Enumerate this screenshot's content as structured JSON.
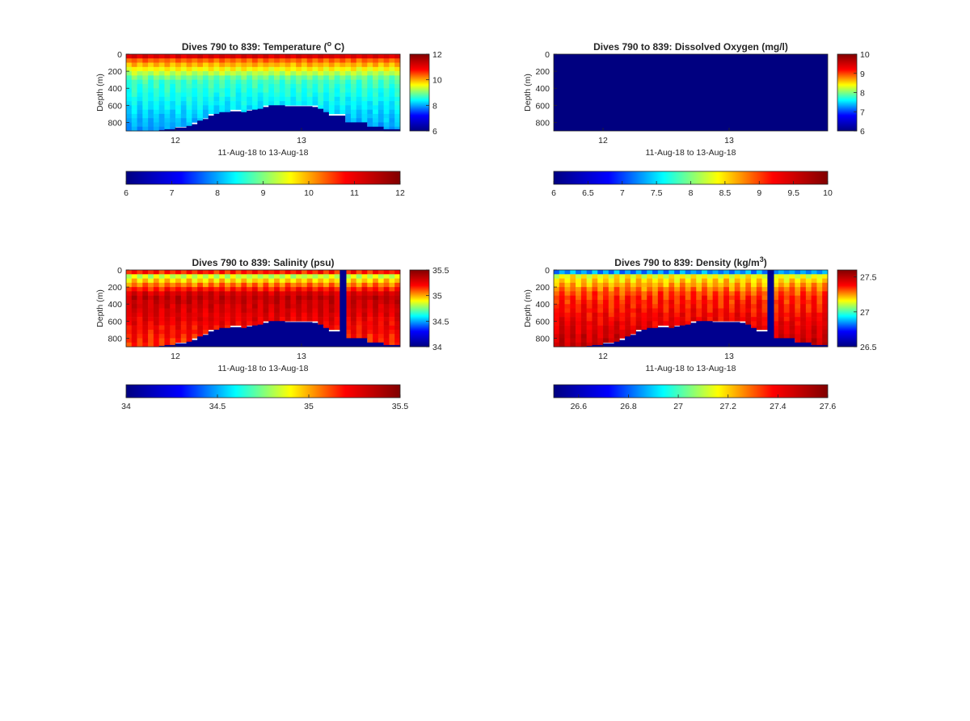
{
  "figure": {
    "background": "#ffffff",
    "colormap": "jet",
    "colormap_stops": [
      "#000080",
      "#0000ff",
      "#00ffff",
      "#ffff00",
      "#ff0000",
      "#800000"
    ],
    "bottom_fill_color": "#00008f"
  },
  "chart_data": [
    {
      "id": "temperature",
      "type": "heatmap",
      "title_prefix": "Dives 790 to 839: Temperature (",
      "title_sup": "o",
      "title_suffix": " C)",
      "xlabel": "11-Aug-18 to 13-Aug-18",
      "ylabel": "Depth (m)",
      "x_ticks": [
        "12",
        "13"
      ],
      "y_ticks": [
        "0",
        "200",
        "400",
        "600",
        "800"
      ],
      "y_range_m": [
        0,
        900
      ],
      "side_colorbar": {
        "ticks": [
          "12",
          "10",
          "8",
          "6"
        ],
        "range": [
          6,
          12
        ]
      },
      "bottom_colorbar": {
        "ticks": [
          "6",
          "7",
          "8",
          "9",
          "10",
          "11",
          "12"
        ],
        "range": [
          6,
          12
        ]
      },
      "profile": {
        "surface": 11.5,
        "upper": 10.3,
        "mid": 8.6,
        "deep": 7.8,
        "stripe": 0.25
      },
      "seafloor_depth_m": [
        900,
        900,
        900,
        900,
        900,
        900,
        890,
        880,
        880,
        860,
        860,
        840,
        820,
        780,
        760,
        720,
        700,
        680,
        680,
        670,
        670,
        680,
        660,
        650,
        640,
        620,
        600,
        600,
        600,
        610,
        610,
        610,
        610,
        610,
        620,
        640,
        680,
        720,
        720,
        720,
        800,
        800,
        800,
        800,
        850,
        850,
        850,
        880,
        880,
        880
      ],
      "gap_dives": []
    },
    {
      "id": "oxygen",
      "type": "heatmap",
      "title": "Dives 790 to 839: Dissolved Oxygen (mg/l)",
      "xlabel": "11-Aug-18 to 13-Aug-18",
      "ylabel": "Depth (m)",
      "x_ticks": [
        "12",
        "13"
      ],
      "y_ticks": [
        "0",
        "200",
        "400",
        "600",
        "800"
      ],
      "y_range_m": [
        0,
        900
      ],
      "side_colorbar": {
        "ticks": [
          "10",
          "9",
          "8",
          "7",
          "6"
        ],
        "range": [
          6,
          10
        ]
      },
      "bottom_colorbar": {
        "ticks": [
          "6",
          "6.5",
          "7",
          "7.5",
          "8",
          "8.5",
          "9",
          "9.5",
          "10"
        ],
        "range": [
          6,
          10
        ]
      },
      "uniform_value": 6,
      "seafloor_depth_m": [],
      "gap_dives": []
    },
    {
      "id": "salinity",
      "type": "heatmap",
      "title": "Dives 790 to 839: Salinity (psu)",
      "xlabel": "11-Aug-18 to 13-Aug-18",
      "ylabel": "Depth (m)",
      "x_ticks": [
        "12",
        "13"
      ],
      "y_ticks": [
        "0",
        "200",
        "400",
        "600",
        "800"
      ],
      "y_range_m": [
        0,
        900
      ],
      "side_colorbar": {
        "ticks": [
          "35.5",
          "35",
          "34.5",
          "34"
        ],
        "range": [
          34,
          35.5
        ]
      },
      "bottom_colorbar": {
        "ticks": [
          "34",
          "34.5",
          "35",
          "35.5"
        ],
        "range": [
          34,
          35.5
        ]
      },
      "profile": {
        "surface": 35.4,
        "upper": 34.75,
        "mid": 35.3,
        "deep": 35.1,
        "stripe": 0.1
      },
      "seafloor_depth_m": [
        900,
        900,
        900,
        900,
        900,
        900,
        890,
        880,
        880,
        860,
        860,
        840,
        820,
        780,
        760,
        720,
        700,
        680,
        680,
        670,
        670,
        680,
        660,
        650,
        640,
        620,
        600,
        600,
        600,
        610,
        610,
        610,
        610,
        610,
        620,
        640,
        680,
        720,
        720,
        720,
        800,
        800,
        800,
        800,
        850,
        850,
        850,
        880,
        880,
        880
      ],
      "gap_dives": [
        39
      ]
    },
    {
      "id": "density",
      "type": "heatmap",
      "title_prefix": "Dives 790 to 839: Density (kg/m",
      "title_sup": "3",
      "title_suffix": ")",
      "xlabel": "11-Aug-18 to 13-Aug-18",
      "ylabel": "Depth (m)",
      "x_ticks": [
        "12",
        "13"
      ],
      "y_ticks": [
        "0",
        "200",
        "400",
        "600",
        "800"
      ],
      "y_range_m": [
        0,
        900
      ],
      "side_colorbar": {
        "ticks": [
          "27.5",
          "27",
          "26.5"
        ],
        "range": [
          26.5,
          27.6
        ]
      },
      "bottom_colorbar": {
        "ticks": [
          "26.6",
          "26.8",
          "27",
          "27.2",
          "27.4",
          "27.6"
        ],
        "range": [
          26.5,
          27.6
        ]
      },
      "profile": {
        "surface": 26.6,
        "upper": 27.1,
        "mid": 27.3,
        "deep": 27.45,
        "stripe": 0.08
      },
      "seafloor_depth_m": [
        900,
        900,
        900,
        900,
        900,
        900,
        890,
        880,
        880,
        860,
        860,
        840,
        820,
        780,
        760,
        720,
        700,
        680,
        680,
        670,
        670,
        680,
        660,
        650,
        640,
        620,
        600,
        600,
        600,
        610,
        610,
        610,
        610,
        610,
        620,
        640,
        680,
        720,
        720,
        720,
        800,
        800,
        800,
        800,
        850,
        850,
        850,
        880,
        880,
        880
      ],
      "gap_dives": [
        39
      ]
    }
  ]
}
